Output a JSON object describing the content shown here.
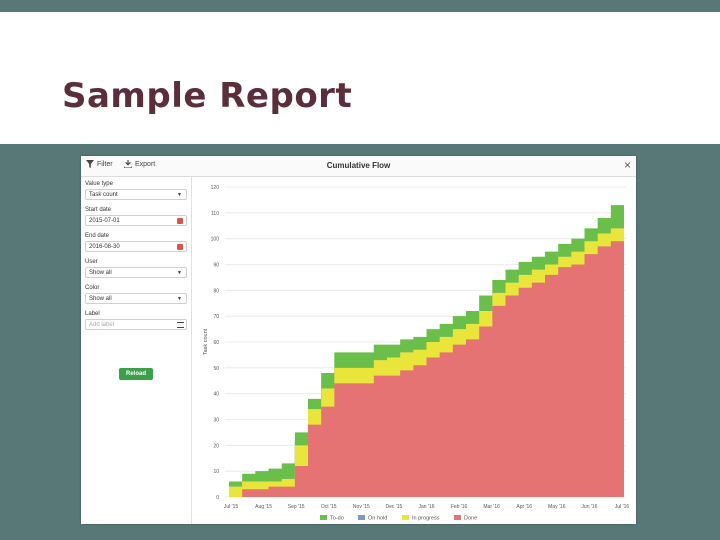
{
  "slide": {
    "title": "Sample Report"
  },
  "window": {
    "filter_label": "Filter",
    "export_label": "Export",
    "title": "Cumulative Flow",
    "close_label": "×"
  },
  "sidebar": {
    "value_type": {
      "label": "Value type",
      "value": "Task count"
    },
    "start_date": {
      "label": "Start date",
      "value": "2015-07-01"
    },
    "end_date": {
      "label": "End date",
      "value": "2016-08-30"
    },
    "user": {
      "label": "User",
      "value": "Show all"
    },
    "color": {
      "label": "Color",
      "value": "Show all"
    },
    "label": {
      "label": "Label",
      "placeholder": "Add label"
    },
    "reload_label": "Reload"
  },
  "chart_data": {
    "type": "area",
    "ylabel": "Task count",
    "ylim": [
      0,
      120
    ],
    "yticks": [
      0,
      10,
      20,
      30,
      40,
      50,
      60,
      70,
      80,
      90,
      100,
      110,
      120
    ],
    "x_tick_labels": [
      "Jul '15",
      "Aug '15",
      "Sep '15",
      "Oct '15",
      "Nov '15",
      "Dec '15",
      "Jan '16",
      "Feb '16",
      "Mar '16",
      "Apr '16",
      "May '16",
      "Jun '16",
      "Jul '16"
    ],
    "grid": true,
    "legend_position": "bottom",
    "series": [
      {
        "name": "Done",
        "color": "#e57373",
        "values": [
          0,
          3,
          3,
          4,
          4,
          12,
          28,
          35,
          44,
          44,
          44,
          47,
          47,
          49,
          51,
          54,
          56,
          59,
          61,
          66,
          74,
          78,
          81,
          83,
          86,
          89,
          90,
          94,
          97,
          99,
          99
        ]
      },
      {
        "name": "In progress",
        "color": "#e9e53a",
        "values": [
          4,
          6,
          6,
          6,
          7,
          20,
          34,
          42,
          50,
          50,
          50,
          53,
          54,
          56,
          57,
          60,
          62,
          65,
          67,
          72,
          79,
          83,
          86,
          88,
          90,
          93,
          95,
          99,
          102,
          104,
          104
        ]
      },
      {
        "name": "On hold",
        "color": "#7b9ac8",
        "values": [
          4,
          6,
          6,
          6,
          7,
          20,
          34,
          42,
          50,
          50,
          50,
          53,
          54,
          56,
          57,
          60,
          62,
          65,
          67,
          72,
          79,
          83,
          86,
          88,
          90,
          93,
          95,
          99,
          102,
          104,
          104
        ]
      },
      {
        "name": "To-do",
        "color": "#6abf4b",
        "values": [
          6,
          9,
          10,
          11,
          13,
          25,
          38,
          48,
          56,
          56,
          56,
          59,
          59,
          61,
          62,
          65,
          67,
          70,
          72,
          78,
          84,
          88,
          91,
          93,
          95,
          98,
          100,
          104,
          108,
          113,
          113
        ]
      }
    ]
  }
}
